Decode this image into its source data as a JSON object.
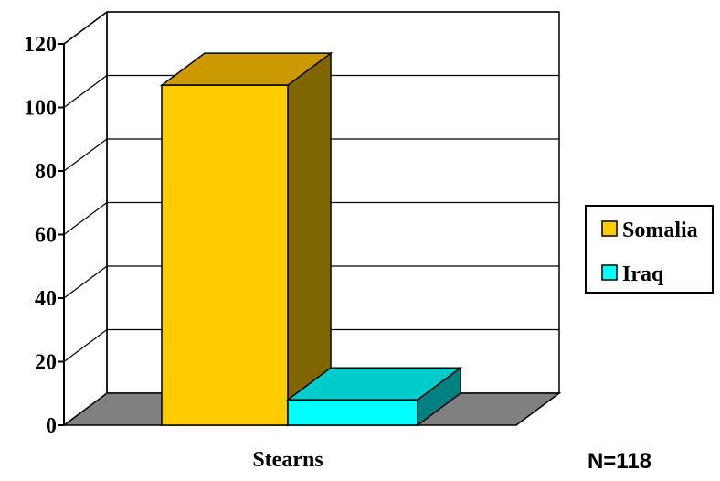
{
  "chart_data": {
    "type": "bar",
    "categories": [
      "Stearns"
    ],
    "series": [
      {
        "name": "Somalia",
        "values": [
          107
        ]
      },
      {
        "name": "Iraq",
        "values": [
          8
        ]
      }
    ],
    "ylim": [
      0,
      120
    ],
    "yticks": [
      "0",
      "20",
      "40",
      "60",
      "80",
      "100",
      "120"
    ],
    "grid": true,
    "legend_position": "right",
    "annotation": "N=118",
    "colors": {
      "somalia_front": "#FFCC00",
      "somalia_top": "#CC9900",
      "somalia_side": "#806600",
      "iraq_front": "#00FFFF",
      "iraq_top": "#00CCCC",
      "iraq_side": "#008080",
      "floor": "#808080"
    }
  }
}
